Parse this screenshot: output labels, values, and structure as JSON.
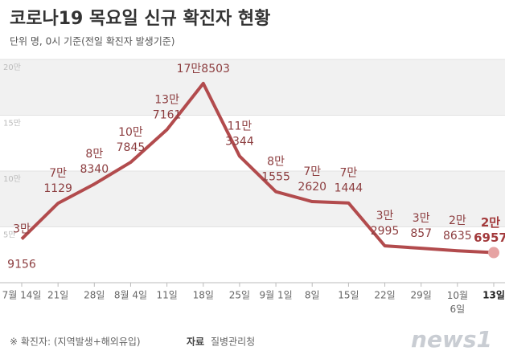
{
  "title": "코로나19 목요일 신규 확진자 현황",
  "subtitle": "단위 명, 0시 기준(전일 확진자 발생기준)",
  "footnote": "※ 확진자: (지역발생+해외유입)",
  "source_label": "자료",
  "source": "질병관리청",
  "logo": "news1",
  "chart_data": {
    "type": "line",
    "categories": [
      "7월 14일",
      "21일",
      "28일",
      "8월 4일",
      "11일",
      "18일",
      "25일",
      "9월 1일",
      "8일",
      "15일",
      "22일",
      "29일",
      "10월\n6일",
      "13일"
    ],
    "values": [
      39156,
      71129,
      88340,
      107845,
      137161,
      178503,
      113344,
      81555,
      72620,
      71444,
      32995,
      30857,
      28635,
      26957
    ],
    "value_labels": [
      [
        "3만",
        "9156"
      ],
      [
        "7만",
        "1129"
      ],
      [
        "8만",
        "8340"
      ],
      [
        "10만",
        "7845"
      ],
      [
        "13만",
        "7161"
      ],
      [
        "17만8503"
      ],
      [
        "11만",
        "3344"
      ],
      [
        "8만",
        "1555"
      ],
      [
        "7만",
        "2620"
      ],
      [
        "7만",
        "1444"
      ],
      [
        "3만",
        "2995"
      ],
      [
        "3만",
        "857"
      ],
      [
        "2만",
        "8635"
      ],
      [
        "2만",
        "6957"
      ]
    ],
    "color": "#b24b4d",
    "ylim": [
      0,
      200000
    ],
    "yticks": [
      {
        "value": 50000,
        "label": "5만"
      },
      {
        "value": 100000,
        "label": "10만"
      },
      {
        "value": 150000,
        "label": "15만"
      },
      {
        "value": 200000,
        "label": "20만"
      }
    ],
    "grid": true
  }
}
